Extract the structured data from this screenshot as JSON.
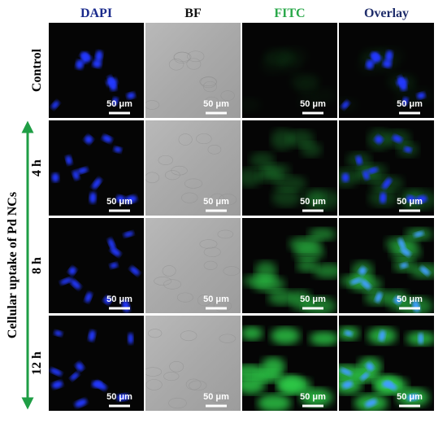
{
  "figure": {
    "columns": [
      "DAPI",
      "BF",
      "FITC",
      "Overlay"
    ],
    "side_label": "Cellular uptake of Pd NCs",
    "rows": [
      {
        "label": "Control",
        "scale_bars": [
          "50 μm",
          "50 μm",
          "50 μm",
          "50 μm"
        ]
      },
      {
        "label": "4 h",
        "scale_bars": [
          "50 μm",
          "50 μm",
          "50 μm",
          "50 μm"
        ]
      },
      {
        "label": "8 h",
        "scale_bars": [
          "50 μm",
          "50 μm",
          "50 μm",
          "50 μm"
        ]
      },
      {
        "label": "12 h",
        "scale_bars": [
          "50 μm",
          "50 μm",
          "50 μm",
          "50 μm"
        ]
      }
    ]
  }
}
